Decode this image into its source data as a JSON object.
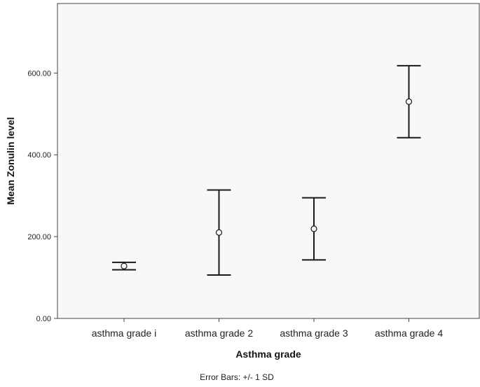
{
  "chart_data": {
    "type": "error-bar",
    "categories": [
      "asthma grade i",
      "asthma grade 2",
      "asthma grade 3",
      "asthma grade 4"
    ],
    "series": [
      {
        "mean": [
          128,
          210,
          219,
          530
        ],
        "upper": [
          137,
          314,
          295,
          618
        ],
        "lower": [
          119,
          106,
          143,
          442
        ]
      }
    ],
    "xlabel": "Asthma grade",
    "ylabel": "Mean Zonulin level",
    "ylim": [
      0,
      770
    ],
    "yticks": [
      0,
      200,
      400,
      600
    ],
    "ytick_labels": [
      "0.00",
      "200.00",
      "400.00",
      "600.00"
    ],
    "grid": false,
    "footnote": "Error Bars: +/- 1 SD",
    "colors": {
      "background": "#f8f8f8",
      "marks": "#1a1a1a"
    }
  }
}
